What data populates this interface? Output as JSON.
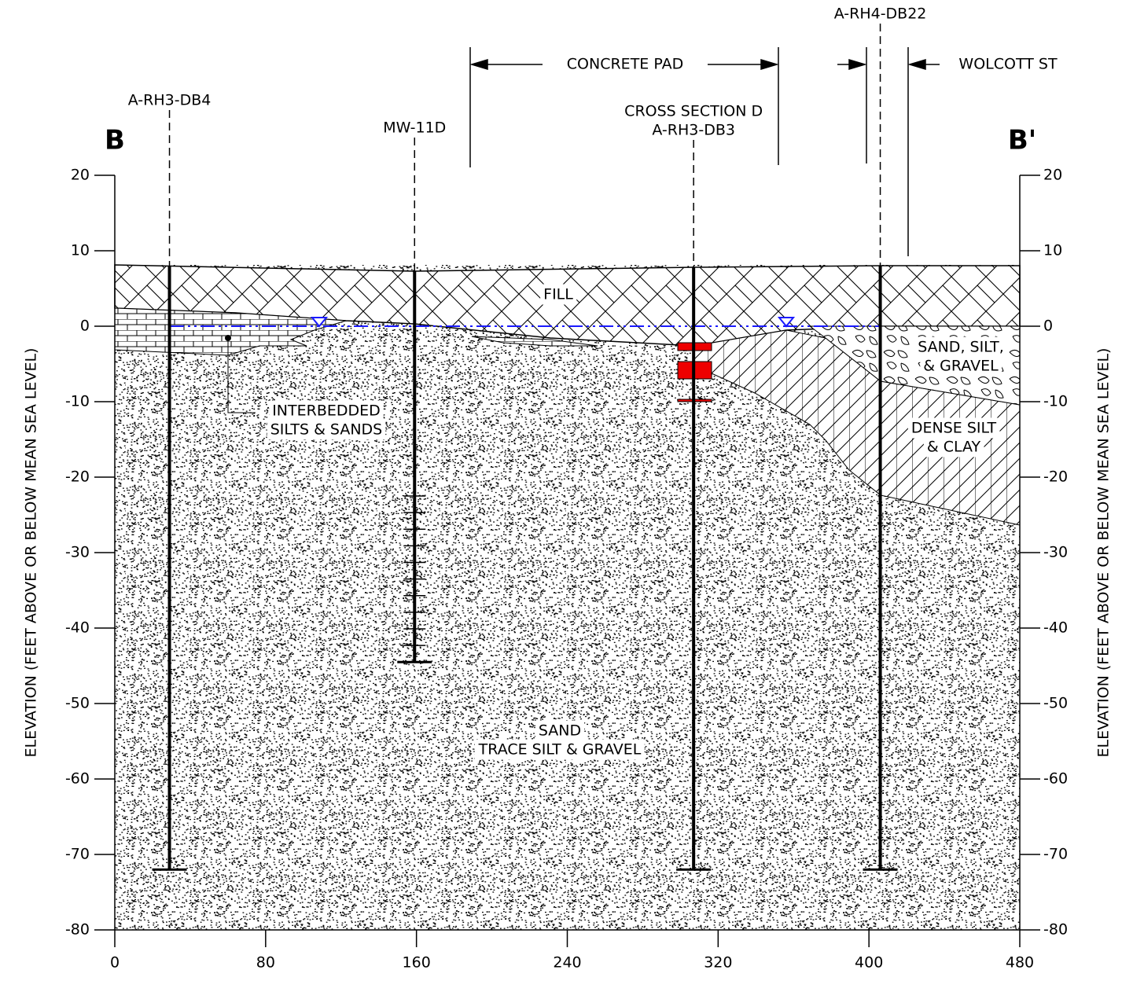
{
  "diagram": {
    "section_start": "B",
    "section_end": "B'",
    "x_axis": {
      "lim": [
        0,
        480
      ],
      "ticks": [
        0,
        80,
        160,
        240,
        320,
        400,
        480
      ]
    },
    "y_axis": {
      "label": "ELEVATION (FEET ABOVE OR BELOW MEAN SEA LEVEL)",
      "lim": [
        -80,
        20
      ],
      "ticks": [
        20,
        10,
        0,
        -10,
        -20,
        -30,
        -40,
        -50,
        -60,
        -70,
        -80
      ]
    },
    "borings": [
      {
        "name": [
          "A-RH3-DB4"
        ],
        "x": 29,
        "bottom": -72
      },
      {
        "name": [
          "MW-11D"
        ],
        "x": 159,
        "bottom": -44.5
      },
      {
        "name": [
          "CROSS SECTION D",
          "A-RH3-DB3"
        ],
        "x": 307,
        "bottom": -72
      },
      {
        "name": [
          "A-RH4-DB22"
        ],
        "x": 406,
        "bottom": -72
      }
    ],
    "annotations": {
      "pad": "CONCRETE PAD",
      "street": "WOLCOTT ST"
    },
    "layers": [
      {
        "label": [
          "FILL"
        ]
      },
      {
        "label": [
          "INTERBEDDED",
          "SILTS & SANDS"
        ]
      },
      {
        "label": [
          "SAND",
          "TRACE SILT & GRAVEL"
        ]
      },
      {
        "label": [
          "SAND, SILT,",
          "& GRAVEL"
        ]
      },
      {
        "label": [
          "DENSE SILT",
          "& CLAY"
        ]
      }
    ]
  }
}
